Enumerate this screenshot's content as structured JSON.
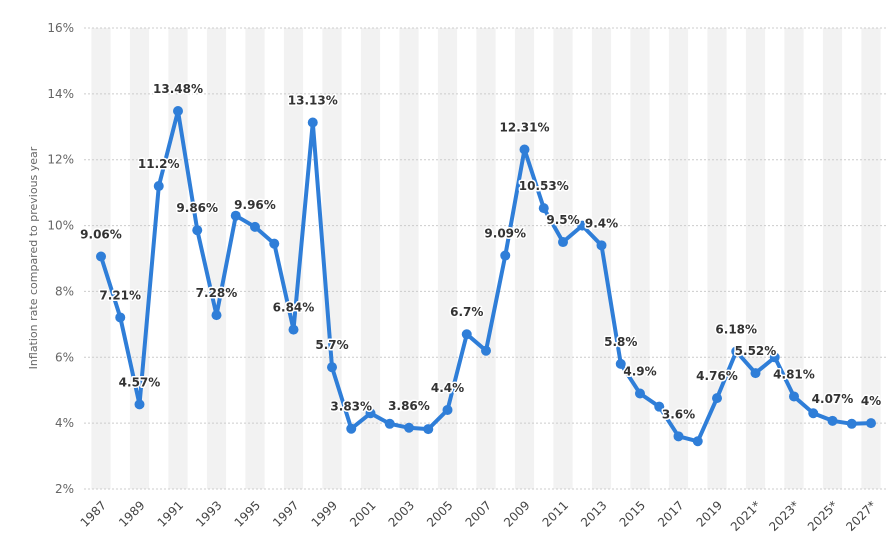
{
  "chart_data": {
    "type": "line",
    "ylabel": "Inflation rate compared to previous year",
    "ylim": [
      2,
      16
    ],
    "y_ticks": [
      "2%",
      "4%",
      "6%",
      "8%",
      "10%",
      "12%",
      "14%",
      "16%"
    ],
    "x_tick_labels": [
      "1987",
      "1989",
      "1991",
      "1993",
      "1995",
      "1997",
      "1999",
      "2001",
      "2003",
      "2005",
      "2007",
      "2009",
      "2011",
      "2013",
      "2015",
      "2017",
      "2019",
      "2021*",
      "2023*",
      "2025*",
      "2027*"
    ],
    "grid": "horizontal dashed, alternating vertical year bands",
    "line_color": "#2f7ed8",
    "x": [
      1987,
      1988,
      1989,
      1990,
      1991,
      1992,
      1993,
      1994,
      1995,
      1996,
      1997,
      1998,
      1999,
      2000,
      2001,
      2002,
      2003,
      2004,
      2005,
      2006,
      2007,
      2008,
      2009,
      2010,
      2011,
      2012,
      2013,
      2014,
      2015,
      2016,
      2017,
      2018,
      2019,
      2020,
      2021,
      2022,
      2023,
      2024,
      2025,
      2026,
      2027
    ],
    "values": [
      9.06,
      7.21,
      4.57,
      11.2,
      13.48,
      9.86,
      7.28,
      10.3,
      9.96,
      9.45,
      6.84,
      13.13,
      5.7,
      3.83,
      4.3,
      3.98,
      3.86,
      3.82,
      4.4,
      6.7,
      6.2,
      9.09,
      12.31,
      10.53,
      9.5,
      10.0,
      9.4,
      5.8,
      4.9,
      4.5,
      3.6,
      3.45,
      4.76,
      6.18,
      5.52,
      6.0,
      4.81,
      4.3,
      4.07,
      3.98,
      4.0
    ],
    "data_labels": [
      {
        "year": 1987,
        "text": "9.06%"
      },
      {
        "year": 1988,
        "text": "7.21%"
      },
      {
        "year": 1989,
        "text": "4.57%"
      },
      {
        "year": 1990,
        "text": "11.2%"
      },
      {
        "year": 1991,
        "text": "13.48%"
      },
      {
        "year": 1992,
        "text": "9.86%"
      },
      {
        "year": 1993,
        "text": "7.28%"
      },
      {
        "year": 1995,
        "text": "9.96%"
      },
      {
        "year": 1997,
        "text": "6.84%"
      },
      {
        "year": 1998,
        "text": "13.13%"
      },
      {
        "year": 1999,
        "text": "5.7%"
      },
      {
        "year": 2000,
        "text": "3.83%"
      },
      {
        "year": 2003,
        "text": "3.86%"
      },
      {
        "year": 2005,
        "text": "4.4%"
      },
      {
        "year": 2006,
        "text": "6.7%"
      },
      {
        "year": 2008,
        "text": "9.09%"
      },
      {
        "year": 2009,
        "text": "12.31%"
      },
      {
        "year": 2010,
        "text": "10.53%"
      },
      {
        "year": 2011,
        "text": "9.5%"
      },
      {
        "year": 2013,
        "text": "9.4%"
      },
      {
        "year": 2014,
        "text": "5.8%"
      },
      {
        "year": 2015,
        "text": "4.9%"
      },
      {
        "year": 2017,
        "text": "3.6%"
      },
      {
        "year": 2019,
        "text": "4.76%"
      },
      {
        "year": 2020,
        "text": "6.18%"
      },
      {
        "year": 2021,
        "text": "5.52%"
      },
      {
        "year": 2023,
        "text": "4.81%"
      },
      {
        "year": 2025,
        "text": "4.07%"
      },
      {
        "year": 2027,
        "text": "4%"
      }
    ]
  }
}
